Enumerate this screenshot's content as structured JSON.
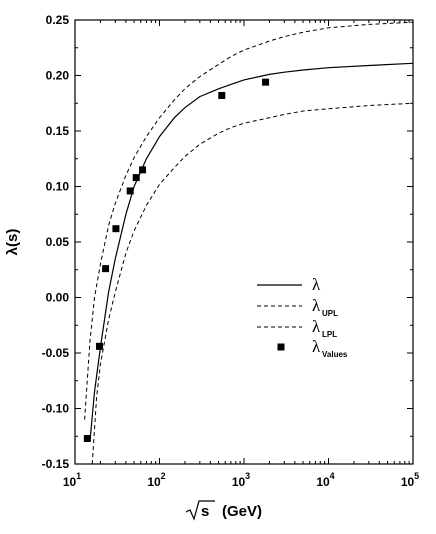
{
  "chart_data": {
    "type": "line",
    "title": "",
    "xlabel": "(GeV)",
    "xlabel_root": "s",
    "ylabel": "λ(s)",
    "x_scale": "log",
    "xlim": [
      10,
      100000
    ],
    "ylim": [
      -0.15,
      0.25
    ],
    "x_ticks": [
      {
        "value": 10,
        "base": "10",
        "exp": "1"
      },
      {
        "value": 100,
        "base": "10",
        "exp": "2"
      },
      {
        "value": 1000,
        "base": "10",
        "exp": "3"
      },
      {
        "value": 10000,
        "base": "10",
        "exp": "4"
      },
      {
        "value": 100000,
        "base": "10",
        "exp": "5"
      }
    ],
    "y_ticks": [
      "-0.15",
      "-0.10",
      "-0.05",
      "0.00",
      "0.05",
      "0.10",
      "0.15",
      "0.20",
      "0.25"
    ],
    "grid": false,
    "legend_position": "center-right",
    "legend": [
      {
        "symbol": "λ",
        "sub": "",
        "style": "solid"
      },
      {
        "symbol": "λ",
        "sub": "UPL",
        "style": "dashed"
      },
      {
        "symbol": "λ",
        "sub": "LPL",
        "style": "dashed"
      },
      {
        "symbol": "λ",
        "sub": "Values",
        "style": "marker"
      }
    ],
    "series": [
      {
        "style": "solid",
        "x": [
          15,
          17,
          20,
          25,
          30,
          40,
          50,
          70,
          100,
          150,
          200,
          300,
          500,
          700,
          1000,
          2000,
          3000,
          5000,
          10000,
          30000,
          100000
        ],
        "y": [
          -0.13,
          -0.085,
          -0.045,
          0.005,
          0.035,
          0.075,
          0.1,
          0.125,
          0.145,
          0.162,
          0.171,
          0.181,
          0.188,
          0.192,
          0.196,
          0.201,
          0.203,
          0.205,
          0.207,
          0.209,
          0.211
        ]
      },
      {
        "style": "dashed",
        "x": [
          13,
          15,
          17,
          20,
          25,
          30,
          40,
          50,
          70,
          100,
          150,
          200,
          300,
          500,
          700,
          1000,
          2000,
          3000,
          5000,
          10000,
          30000,
          100000
        ],
        "y": [
          -0.11,
          -0.04,
          0.0,
          0.03,
          0.065,
          0.085,
          0.11,
          0.126,
          0.145,
          0.162,
          0.178,
          0.188,
          0.199,
          0.21,
          0.217,
          0.223,
          0.231,
          0.235,
          0.239,
          0.243,
          0.246,
          0.248
        ]
      },
      {
        "style": "dashed",
        "x": [
          16,
          18,
          20,
          25,
          30,
          40,
          50,
          70,
          100,
          150,
          200,
          300,
          500,
          700,
          1000,
          2000,
          3000,
          5000,
          10000,
          30000,
          100000
        ],
        "y": [
          -0.15,
          -0.09,
          -0.06,
          -0.02,
          0.005,
          0.04,
          0.06,
          0.083,
          0.102,
          0.117,
          0.127,
          0.138,
          0.148,
          0.153,
          0.157,
          0.162,
          0.165,
          0.168,
          0.17,
          0.173,
          0.175
        ]
      },
      {
        "style": "marker",
        "x": [
          14,
          19.5,
          23,
          30.5,
          45,
          53,
          63,
          546,
          1800
        ],
        "y": [
          -0.127,
          -0.044,
          0.026,
          0.062,
          0.096,
          0.108,
          0.115,
          0.182,
          0.194
        ]
      }
    ]
  }
}
